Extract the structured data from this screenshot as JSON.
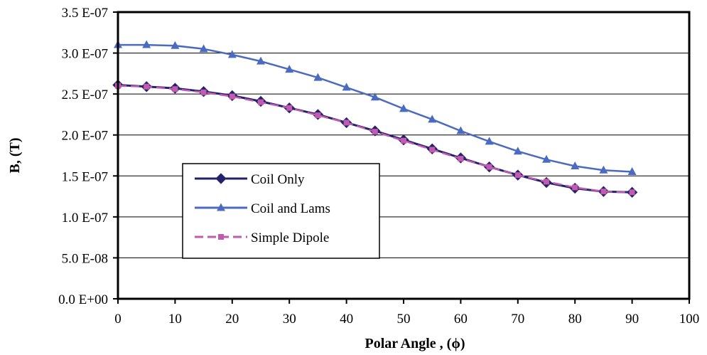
{
  "chart_data": {
    "type": "line",
    "title": "",
    "xlabel": "Polar Angle , (ϕ)",
    "ylabel": "B, (T)",
    "xlim": [
      0,
      100
    ],
    "ylim": [
      0,
      3.5e-07
    ],
    "x_ticks": [
      0,
      10,
      20,
      30,
      40,
      50,
      60,
      70,
      80,
      90,
      100
    ],
    "x_tick_labels": [
      "0",
      "10",
      "20",
      "30",
      "40",
      "50",
      "60",
      "70",
      "80",
      "90",
      "100"
    ],
    "y_ticks": [
      0,
      5e-08,
      1e-07,
      1.5e-07,
      2e-07,
      2.5e-07,
      3e-07,
      3.5e-07
    ],
    "y_tick_labels": [
      "0.0 E+00",
      "5.0 E-08",
      "1.0 E-07",
      "1.5 E-07",
      "2.0 E-07",
      "2.5 E-07",
      "3.0 E-07",
      "3.5 E-07"
    ],
    "grid": "horizontal",
    "legend_position": "lower-left",
    "x": [
      0,
      5,
      10,
      15,
      20,
      25,
      30,
      35,
      40,
      45,
      50,
      55,
      60,
      65,
      70,
      75,
      80,
      85,
      90
    ],
    "series": [
      {
        "name": "Coil Only",
        "color": "#22216e",
        "marker": "diamond",
        "dash": "solid",
        "values": [
          2.61e-07,
          2.59e-07,
          2.57e-07,
          2.53e-07,
          2.48e-07,
          2.41e-07,
          2.33e-07,
          2.25e-07,
          2.15e-07,
          2.05e-07,
          1.94e-07,
          1.83e-07,
          1.72e-07,
          1.61e-07,
          1.51e-07,
          1.42e-07,
          1.35e-07,
          1.31e-07,
          1.3e-07
        ]
      },
      {
        "name": "Coil and Lams",
        "color": "#4b6bc0",
        "marker": "triangle",
        "dash": "solid",
        "values": [
          3.1e-07,
          3.1e-07,
          3.09e-07,
          3.05e-07,
          2.98e-07,
          2.9e-07,
          2.8e-07,
          2.7e-07,
          2.58e-07,
          2.46e-07,
          2.32e-07,
          2.19e-07,
          2.05e-07,
          1.92e-07,
          1.8e-07,
          1.7e-07,
          1.62e-07,
          1.57e-07,
          1.55e-07
        ]
      },
      {
        "name": "Simple Dipole",
        "color": "#c25ab0",
        "marker": "square",
        "dash": "dashed",
        "values": [
          2.6e-07,
          2.59e-07,
          2.56e-07,
          2.52e-07,
          2.47e-07,
          2.4e-07,
          2.33e-07,
          2.24e-07,
          2.15e-07,
          2.04e-07,
          1.93e-07,
          1.82e-07,
          1.71e-07,
          1.61e-07,
          1.51e-07,
          1.43e-07,
          1.36e-07,
          1.31e-07,
          1.3e-07
        ]
      }
    ]
  }
}
